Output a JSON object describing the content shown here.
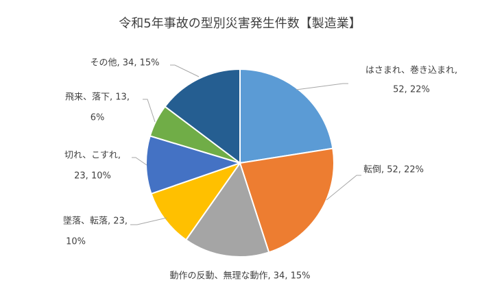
{
  "chart_data": {
    "type": "pie",
    "title": "令和5年事故の型別災害発生件数【製造業】",
    "values": [
      52,
      52,
      34,
      23,
      23,
      13,
      34
    ],
    "value_labels": [
      [
        "はさまれ、巻き込まれ,",
        "52, 22%"
      ],
      [
        "転倒, 52, 22%"
      ],
      [
        "動作の反動、無理な動作, 34, 15%"
      ],
      [
        "墜落、転落, 23,",
        "10%"
      ],
      [
        "切れ、こすれ,",
        "23, 10%"
      ],
      [
        "飛来、落下, 13,",
        "6%"
      ],
      [
        "その他, 34, 15%"
      ]
    ],
    "colors": [
      "#5b9bd5",
      "#ed7d31",
      "#a5a5a5",
      "#ffc000",
      "#4472c4",
      "#70ad47",
      "#255e91"
    ]
  }
}
